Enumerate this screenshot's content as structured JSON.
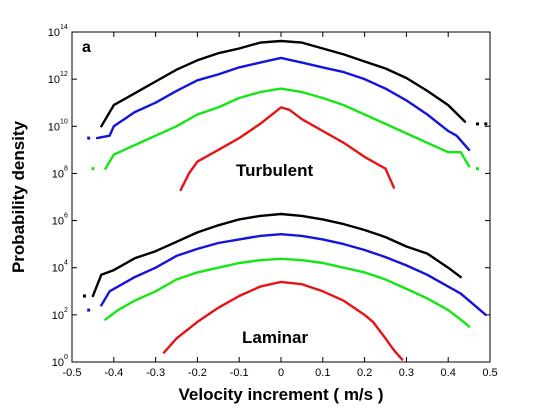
{
  "chart_data": {
    "type": "line",
    "panel_label": "a",
    "xlabel": "Velocity increment ( m/s )",
    "ylabel": "Probability density",
    "xlim": [
      -0.5,
      0.5
    ],
    "ylim_log10": [
      0,
      14
    ],
    "y_scale": "log",
    "x_ticks": [
      "-0.5",
      "-0.4",
      "-0.3",
      "-0.2",
      "-0.1",
      "0",
      "0.1",
      "0.2",
      "0.3",
      "0.4",
      "0.5"
    ],
    "y_ticks": [
      {
        "base": "10",
        "exp": "0"
      },
      {
        "base": "10",
        "exp": "2"
      },
      {
        "base": "10",
        "exp": "4"
      },
      {
        "base": "10",
        "exp": "6"
      },
      {
        "base": "10",
        "exp": "8"
      },
      {
        "base": "10",
        "exp": "10"
      },
      {
        "base": "10",
        "exp": "12"
      },
      {
        "base": "10",
        "exp": "14"
      }
    ],
    "grid": false,
    "annotations": [
      "Turbulent",
      "Laminar"
    ],
    "series_colors": {
      "black": "#000000",
      "blue": "#1414dc",
      "green": "#14e614",
      "red": "#e61414"
    },
    "series": [
      {
        "group": "Turbulent",
        "color": "black",
        "points": [
          [
            -0.43,
            10.0
          ],
          [
            -0.4,
            10.9
          ],
          [
            -0.35,
            11.4
          ],
          [
            -0.3,
            11.9
          ],
          [
            -0.25,
            12.4
          ],
          [
            -0.2,
            12.8
          ],
          [
            -0.15,
            13.1
          ],
          [
            -0.1,
            13.3
          ],
          [
            -0.05,
            13.55
          ],
          [
            0.0,
            13.62
          ],
          [
            0.05,
            13.55
          ],
          [
            0.1,
            13.3
          ],
          [
            0.15,
            13.05
          ],
          [
            0.2,
            12.75
          ],
          [
            0.25,
            12.45
          ],
          [
            0.3,
            12.05
          ],
          [
            0.35,
            11.5
          ],
          [
            0.4,
            10.9
          ],
          [
            0.44,
            10.2
          ]
        ]
      },
      {
        "group": "Turbulent",
        "color": "blue",
        "points": [
          [
            -0.44,
            9.5
          ],
          [
            -0.41,
            9.6
          ],
          [
            -0.4,
            10.0
          ],
          [
            -0.35,
            10.6
          ],
          [
            -0.3,
            11.0
          ],
          [
            -0.25,
            11.5
          ],
          [
            -0.2,
            11.95
          ],
          [
            -0.15,
            12.2
          ],
          [
            -0.1,
            12.5
          ],
          [
            -0.05,
            12.7
          ],
          [
            0.0,
            12.9
          ],
          [
            0.05,
            12.7
          ],
          [
            0.1,
            12.5
          ],
          [
            0.15,
            12.3
          ],
          [
            0.2,
            12.0
          ],
          [
            0.25,
            11.6
          ],
          [
            0.3,
            11.1
          ],
          [
            0.35,
            10.5
          ],
          [
            0.4,
            9.8
          ],
          [
            0.42,
            9.6
          ],
          [
            0.45,
            9.0
          ]
        ]
      },
      {
        "group": "Turbulent",
        "color": "green",
        "points": [
          [
            -0.42,
            8.2
          ],
          [
            -0.4,
            8.8
          ],
          [
            -0.35,
            9.2
          ],
          [
            -0.3,
            9.6
          ],
          [
            -0.25,
            10.0
          ],
          [
            -0.2,
            10.5
          ],
          [
            -0.15,
            10.8
          ],
          [
            -0.1,
            11.2
          ],
          [
            -0.05,
            11.45
          ],
          [
            0.0,
            11.6
          ],
          [
            0.05,
            11.45
          ],
          [
            0.1,
            11.2
          ],
          [
            0.15,
            10.9
          ],
          [
            0.2,
            10.5
          ],
          [
            0.25,
            10.1
          ],
          [
            0.3,
            9.7
          ],
          [
            0.35,
            9.3
          ],
          [
            0.4,
            8.9
          ],
          [
            0.43,
            8.9
          ],
          [
            0.45,
            8.3
          ]
        ]
      },
      {
        "group": "Turbulent",
        "color": "red",
        "points": [
          [
            -0.24,
            7.3
          ],
          [
            -0.22,
            8.0
          ],
          [
            -0.2,
            8.5
          ],
          [
            -0.15,
            9.0
          ],
          [
            -0.1,
            9.5
          ],
          [
            -0.05,
            10.1
          ],
          [
            0.0,
            10.8
          ],
          [
            0.02,
            10.7
          ],
          [
            0.05,
            10.3
          ],
          [
            0.1,
            9.8
          ],
          [
            0.15,
            9.3
          ],
          [
            0.2,
            8.7
          ],
          [
            0.25,
            8.2
          ],
          [
            0.27,
            7.4
          ]
        ]
      },
      {
        "group": "Laminar",
        "color": "black",
        "points": [
          [
            -0.45,
            2.8
          ],
          [
            -0.43,
            3.7
          ],
          [
            -0.4,
            3.9
          ],
          [
            -0.35,
            4.4
          ],
          [
            -0.3,
            4.7
          ],
          [
            -0.25,
            5.1
          ],
          [
            -0.2,
            5.5
          ],
          [
            -0.15,
            5.8
          ],
          [
            -0.1,
            6.05
          ],
          [
            -0.05,
            6.2
          ],
          [
            0.0,
            6.28
          ],
          [
            0.05,
            6.2
          ],
          [
            0.1,
            6.05
          ],
          [
            0.15,
            5.85
          ],
          [
            0.2,
            5.6
          ],
          [
            0.25,
            5.3
          ],
          [
            0.3,
            4.9
          ],
          [
            0.35,
            4.6
          ],
          [
            0.4,
            4.0
          ],
          [
            0.43,
            3.6
          ]
        ]
      },
      {
        "group": "Laminar",
        "color": "blue",
        "points": [
          [
            -0.43,
            2.4
          ],
          [
            -0.41,
            3.0
          ],
          [
            -0.35,
            3.6
          ],
          [
            -0.3,
            4.0
          ],
          [
            -0.25,
            4.5
          ],
          [
            -0.2,
            4.8
          ],
          [
            -0.15,
            5.05
          ],
          [
            -0.1,
            5.2
          ],
          [
            -0.05,
            5.35
          ],
          [
            0.0,
            5.42
          ],
          [
            0.05,
            5.35
          ],
          [
            0.1,
            5.2
          ],
          [
            0.15,
            5.0
          ],
          [
            0.2,
            4.75
          ],
          [
            0.25,
            4.45
          ],
          [
            0.3,
            4.1
          ],
          [
            0.35,
            3.7
          ],
          [
            0.4,
            3.2
          ],
          [
            0.43,
            2.9
          ],
          [
            0.47,
            2.3
          ],
          [
            0.49,
            2.0
          ]
        ]
      },
      {
        "group": "Laminar",
        "color": "green",
        "points": [
          [
            -0.42,
            1.8
          ],
          [
            -0.39,
            2.2
          ],
          [
            -0.35,
            2.6
          ],
          [
            -0.3,
            3.0
          ],
          [
            -0.25,
            3.5
          ],
          [
            -0.2,
            3.8
          ],
          [
            -0.15,
            4.0
          ],
          [
            -0.1,
            4.2
          ],
          [
            -0.05,
            4.32
          ],
          [
            0.0,
            4.38
          ],
          [
            0.05,
            4.32
          ],
          [
            0.1,
            4.2
          ],
          [
            0.15,
            4.0
          ],
          [
            0.2,
            3.8
          ],
          [
            0.25,
            3.5
          ],
          [
            0.3,
            3.1
          ],
          [
            0.35,
            2.7
          ],
          [
            0.4,
            2.2
          ],
          [
            0.43,
            1.8
          ],
          [
            0.45,
            1.5
          ]
        ]
      },
      {
        "group": "Laminar",
        "color": "red",
        "points": [
          [
            -0.28,
            0.4
          ],
          [
            -0.25,
            1.0
          ],
          [
            -0.2,
            1.7
          ],
          [
            -0.15,
            2.3
          ],
          [
            -0.1,
            2.8
          ],
          [
            -0.05,
            3.2
          ],
          [
            0.0,
            3.4
          ],
          [
            0.05,
            3.3
          ],
          [
            0.1,
            3.0
          ],
          [
            0.15,
            2.6
          ],
          [
            0.2,
            2.0
          ],
          [
            0.22,
            1.7
          ],
          [
            0.25,
            1.0
          ],
          [
            0.27,
            0.5
          ],
          [
            0.29,
            0.1
          ]
        ]
      }
    ],
    "isolated_points": [
      {
        "color": "blue",
        "x": -0.46,
        "y": 9.5
      },
      {
        "color": "green",
        "x": -0.45,
        "y": 8.2
      },
      {
        "color": "black",
        "x": -0.47,
        "y": 2.8
      },
      {
        "color": "blue",
        "x": -0.46,
        "y": 2.2
      },
      {
        "color": "black",
        "x": 0.47,
        "y": 10.1
      },
      {
        "color": "black",
        "x": 0.49,
        "y": 10.1
      },
      {
        "color": "green",
        "x": 0.47,
        "y": 8.2
      }
    ]
  }
}
